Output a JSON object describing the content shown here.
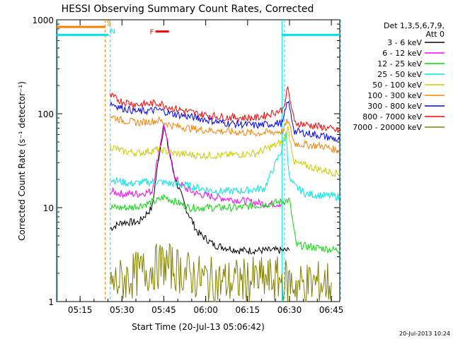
{
  "chart_data": {
    "type": "line",
    "title": "HESSI Observing Summary Count Rates, Corrected",
    "xlabel": "Start Time (20-Jul-13 05:06:42)",
    "ylabel": "Corrected Count Rate (s⁻¹ detector⁻¹)",
    "y_scale": "log",
    "ylim": [
      1,
      1000
    ],
    "xlim_minutes": [
      5.11,
      6.8
    ],
    "x_ticks": [
      {
        "label": "05:15",
        "value": 5.25
      },
      {
        "label": "05:30",
        "value": 5.5
      },
      {
        "label": "05:45",
        "value": 5.75
      },
      {
        "label": "06:00",
        "value": 6.0
      },
      {
        "label": "06:15",
        "value": 6.25
      },
      {
        "label": "06:30",
        "value": 6.5
      },
      {
        "label": "06:45",
        "value": 6.75
      }
    ],
    "y_ticks": [
      {
        "label": "1",
        "value": 1
      },
      {
        "label": "10",
        "value": 10
      },
      {
        "label": "100",
        "value": 100
      },
      {
        "label": "1000",
        "value": 1000
      }
    ],
    "legend_header": [
      "Det 1,3,5,6,7,9,",
      "Att 0"
    ],
    "legend_position": "right",
    "series": [
      {
        "name": "3 - 6 keV",
        "color": "#000000",
        "x": [
          5.43,
          5.5,
          5.6,
          5.68,
          5.72,
          5.75,
          5.78,
          5.82,
          5.88,
          5.95,
          6.05,
          6.2,
          6.38,
          6.5
        ],
        "y": [
          6,
          7,
          7,
          10,
          35,
          75,
          40,
          20,
          10,
          5.5,
          4,
          3.5,
          3.5,
          3.5
        ]
      },
      {
        "name": "6 - 12 keV",
        "color": "#ff00ff",
        "x": [
          5.43,
          5.5,
          5.6,
          5.68,
          5.72,
          5.75,
          5.78,
          5.82,
          5.88,
          5.95,
          6.05,
          6.2,
          6.35,
          6.45
        ],
        "y": [
          15,
          14,
          14,
          15,
          40,
          78,
          40,
          20,
          16,
          14,
          13,
          12,
          11,
          11
        ]
      },
      {
        "name": "12 - 25 keV",
        "color": "#00dd00",
        "x": [
          5.43,
          5.55,
          5.65,
          5.72,
          5.75,
          5.8,
          5.9,
          6.05,
          6.2,
          6.38,
          6.5,
          6.54,
          6.8
        ],
        "y": [
          10,
          10,
          11,
          12,
          13,
          12,
          10,
          10,
          10,
          11,
          12,
          4,
          3.5
        ]
      },
      {
        "name": "25 - 50 keV",
        "color": "#00e5e5",
        "x": [
          5.43,
          5.55,
          5.7,
          5.8,
          5.9,
          6.05,
          6.2,
          6.35,
          6.45,
          6.48,
          6.5,
          6.53,
          6.6,
          6.8
        ],
        "y": [
          20,
          18,
          19,
          18,
          17,
          15,
          15,
          16,
          40,
          60,
          20,
          17,
          14,
          13
        ]
      },
      {
        "name": "50 - 100 keV",
        "color": "#cccc00",
        "x": [
          5.43,
          5.5,
          5.6,
          5.72,
          5.8,
          5.95,
          6.1,
          6.3,
          6.46,
          6.49,
          6.53,
          6.7,
          6.8
        ],
        "y": [
          45,
          40,
          38,
          42,
          38,
          36,
          36,
          38,
          50,
          70,
          30,
          25,
          23
        ]
      },
      {
        "name": "100 - 300 keV",
        "color": "#ff8000",
        "x": [
          5.43,
          5.5,
          5.6,
          5.72,
          5.8,
          5.95,
          6.1,
          6.3,
          6.46,
          6.49,
          6.53,
          6.7,
          6.8
        ],
        "y": [
          95,
          85,
          80,
          85,
          75,
          68,
          65,
          62,
          65,
          85,
          48,
          45,
          40
        ]
      },
      {
        "name": "300 - 800 keV",
        "color": "#0000ff",
        "x": [
          5.43,
          5.5,
          5.6,
          5.72,
          5.8,
          5.95,
          6.1,
          6.3,
          6.46,
          6.49,
          6.53,
          6.7,
          6.8
        ],
        "y": [
          130,
          115,
          105,
          110,
          100,
          90,
          80,
          75,
          80,
          140,
          65,
          58,
          52
        ]
      },
      {
        "name": "800 - 7000 keV",
        "color": "#ff0000",
        "x": [
          5.43,
          5.5,
          5.6,
          5.72,
          5.8,
          5.95,
          6.1,
          6.3,
          6.46,
          6.49,
          6.53,
          6.7,
          6.8
        ],
        "y": [
          155,
          135,
          125,
          130,
          115,
          100,
          92,
          90,
          110,
          185,
          80,
          72,
          65
        ]
      },
      {
        "name": "7000 - 20000 keV",
        "color": "#808000",
        "x": [
          5.43,
          5.6,
          5.75,
          5.95,
          6.1,
          6.3,
          6.45,
          6.55,
          6.75
        ],
        "y": [
          1.5,
          2,
          2.5,
          1.8,
          1.6,
          1.7,
          1.7,
          1.5,
          1.6
        ]
      }
    ],
    "flag_bars": [
      {
        "label": "S",
        "color": "#ff8000",
        "x_start": 5.11,
        "x_end": 5.4,
        "value": 840
      },
      {
        "label": "N",
        "color": "#00e5e5",
        "x_start": 5.11,
        "x_end": 5.42,
        "value": 690
      },
      {
        "label": "F",
        "color": "#ff0000",
        "x_start": 5.7,
        "x_end": 5.78,
        "value": 750
      }
    ],
    "timestamp": "20-Jul-2013 10:24"
  }
}
